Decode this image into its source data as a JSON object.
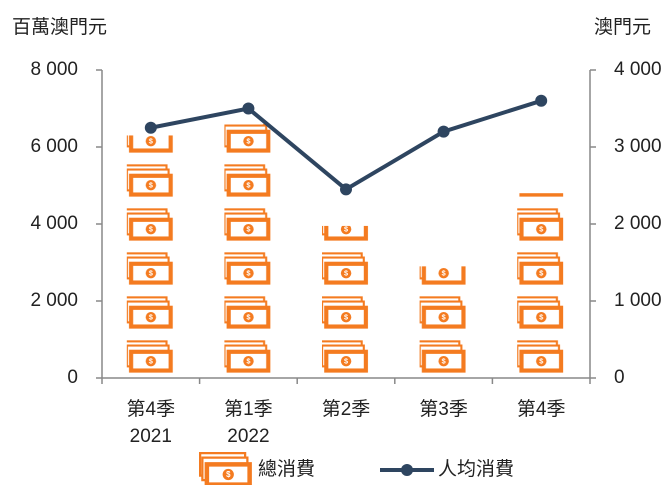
{
  "chart_data": {
    "type": "bar",
    "y_label": "百萬澳門元",
    "y2_label": "澳門元",
    "categories": [
      [
        "第4季",
        "2021"
      ],
      [
        "第1季",
        "2022"
      ],
      [
        "第2季"
      ],
      [
        "第3季"
      ],
      [
        "第4季"
      ]
    ],
    "series": [
      {
        "name": "總消費",
        "type": "bar",
        "color": "#f47b20",
        "values": [
          6300,
          6600,
          3950,
          2900,
          4800
        ]
      },
      {
        "name": "人均消費",
        "type": "line",
        "axis": "y2",
        "color": "#2e4560",
        "values": [
          3250,
          3500,
          2450,
          3200,
          3600
        ]
      }
    ],
    "ylim": [
      0,
      8000
    ],
    "yticks": [
      0,
      {
        "value": 2000,
        "label": "2 000"
      },
      {
        "value": 4000,
        "label": "4 000"
      },
      {
        "value": 6000,
        "label": "6 000"
      },
      {
        "value": 8000,
        "label": "8 000"
      }
    ],
    "y2lim": [
      0,
      4000
    ],
    "y2ticks": [
      0,
      {
        "value": 1000,
        "label": "1 000"
      },
      {
        "value": 2000,
        "label": "2 000"
      },
      {
        "value": 3000,
        "label": "3 000"
      },
      {
        "value": 4000,
        "label": "4 000"
      }
    ],
    "legend": "bottom"
  }
}
